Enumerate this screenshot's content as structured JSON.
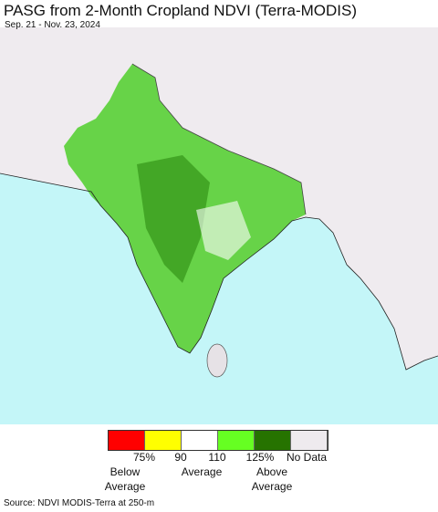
{
  "header": {
    "title": "PASG from 2-Month Cropland NDVI (Terra-MODIS)",
    "subtitle": "Sep. 21 - Nov. 23, 2024"
  },
  "legend": {
    "colors": [
      "#ff0000",
      "#ffff00",
      "#ffffff",
      "#66ff22",
      "#267300",
      "#eeeaee"
    ],
    "tick_labels": [
      "75%",
      "90",
      "110",
      "125%",
      "No Data"
    ],
    "group_labels": [
      [
        "Below",
        "Average"
      ],
      [
        "Average"
      ],
      [
        "Above",
        "Average"
      ]
    ]
  },
  "source": "Source: NDVI MODIS-Terra at 250-m"
}
